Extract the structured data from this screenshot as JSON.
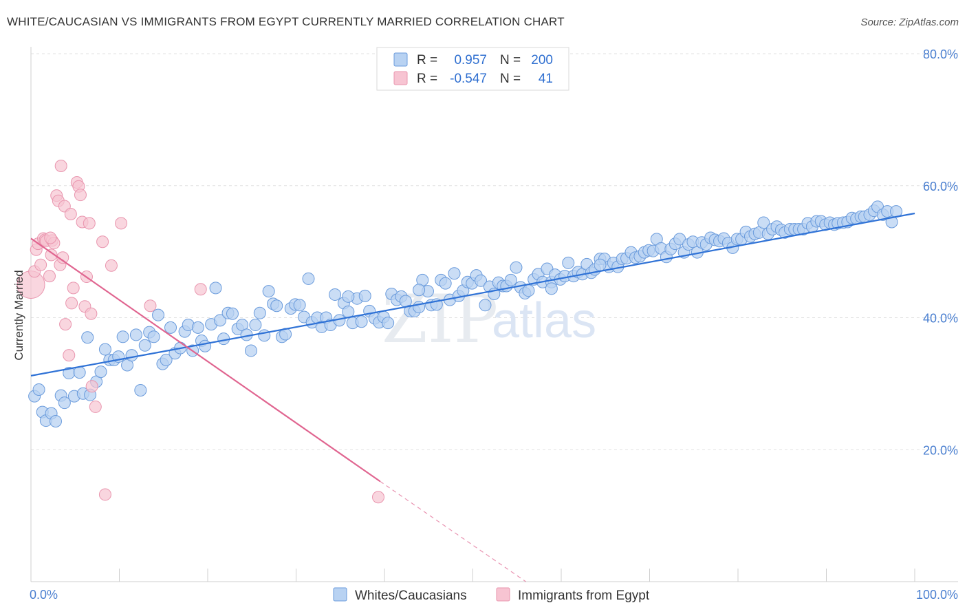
{
  "header": {
    "title": "WHITE/CAUCASIAN VS IMMIGRANTS FROM EGYPT CURRENTLY MARRIED CORRELATION CHART",
    "source": "Source: ZipAtlas.com"
  },
  "watermark": {
    "zip": "ZIP",
    "atlas": "atlas"
  },
  "legend_top": {
    "rows": [
      {
        "r_label": "R =",
        "r_value": "0.957",
        "n_label": "N =",
        "n_value": "200"
      },
      {
        "r_label": "R =",
        "r_value": "-0.547",
        "n_label": "N =",
        "n_value": "41"
      }
    ]
  },
  "legend_bottom": {
    "items": [
      {
        "label": "Whites/Caucasians"
      },
      {
        "label": "Immigrants from Egypt"
      }
    ]
  },
  "colors": {
    "blue_fill": "#b8d2f2",
    "blue_stroke": "#6a9bdc",
    "blue_line": "#2f72d6",
    "pink_fill": "#f7c4d2",
    "pink_stroke": "#e995ae",
    "pink_line": "#e06590",
    "grid": "#e2e2e2",
    "tick_text": "#4a7fd0"
  },
  "chart_data": {
    "type": "scatter",
    "title": "WHITE/CAUCASIAN VS IMMIGRANTS FROM EGYPT CURRENTLY MARRIED CORRELATION CHART",
    "xlabel": "",
    "ylabel": "Currently Married",
    "xlim": [
      0,
      100
    ],
    "ylim": [
      0,
      80
    ],
    "x_tick_labels": [
      "0.0%",
      "100.0%"
    ],
    "y_ticks": [
      20,
      40,
      60,
      80
    ],
    "y_tick_labels": [
      "20.0%",
      "40.0%",
      "60.0%",
      "80.0%"
    ],
    "grid": true,
    "legend_position": "top-center",
    "series": [
      {
        "name": "Whites/Caucasians",
        "r": 0.957,
        "n": 200,
        "trend": {
          "x": [
            0,
            100
          ],
          "y": [
            31.2,
            55.8
          ]
        },
        "points": [
          [
            0.4,
            28.1
          ],
          [
            0.9,
            29.1
          ],
          [
            1.3,
            25.7
          ],
          [
            1.7,
            24.4
          ],
          [
            2.3,
            25.5
          ],
          [
            2.8,
            24.3
          ],
          [
            3.4,
            28.2
          ],
          [
            3.8,
            27.1
          ],
          [
            4.3,
            31.6
          ],
          [
            4.9,
            28.1
          ],
          [
            5.5,
            31.7
          ],
          [
            5.9,
            28.5
          ],
          [
            6.4,
            37.0
          ],
          [
            6.7,
            28.3
          ],
          [
            7.4,
            30.3
          ],
          [
            7.9,
            31.8
          ],
          [
            8.4,
            35.2
          ],
          [
            8.9,
            33.6
          ],
          [
            9.4,
            33.6
          ],
          [
            9.9,
            34.1
          ],
          [
            10.4,
            37.1
          ],
          [
            10.9,
            32.8
          ],
          [
            11.4,
            34.3
          ],
          [
            11.9,
            37.4
          ],
          [
            12.4,
            29.0
          ],
          [
            12.9,
            35.8
          ],
          [
            13.4,
            37.8
          ],
          [
            13.9,
            37.1
          ],
          [
            14.4,
            40.4
          ],
          [
            14.9,
            33.0
          ],
          [
            15.3,
            33.6
          ],
          [
            15.8,
            38.5
          ],
          [
            16.3,
            34.6
          ],
          [
            16.9,
            35.4
          ],
          [
            17.4,
            37.9
          ],
          [
            17.8,
            38.9
          ],
          [
            18.3,
            35.0
          ],
          [
            18.9,
            38.5
          ],
          [
            19.3,
            36.5
          ],
          [
            19.7,
            35.7
          ],
          [
            20.4,
            39.0
          ],
          [
            20.9,
            44.5
          ],
          [
            21.4,
            39.6
          ],
          [
            21.8,
            36.8
          ],
          [
            22.3,
            40.7
          ],
          [
            22.8,
            40.6
          ],
          [
            23.4,
            38.3
          ],
          [
            23.9,
            38.9
          ],
          [
            24.4,
            37.4
          ],
          [
            24.9,
            35.0
          ],
          [
            25.4,
            38.9
          ],
          [
            25.9,
            40.7
          ],
          [
            26.4,
            37.3
          ],
          [
            26.9,
            44.0
          ],
          [
            27.4,
            42.1
          ],
          [
            27.8,
            41.8
          ],
          [
            28.4,
            37.1
          ],
          [
            28.8,
            37.5
          ],
          [
            29.4,
            41.4
          ],
          [
            29.9,
            42.0
          ],
          [
            30.4,
            41.9
          ],
          [
            30.9,
            40.1
          ],
          [
            31.4,
            45.9
          ],
          [
            31.8,
            39.3
          ],
          [
            32.4,
            40.0
          ],
          [
            32.9,
            38.6
          ],
          [
            33.4,
            40.0
          ],
          [
            33.9,
            38.9
          ],
          [
            34.4,
            43.5
          ],
          [
            34.9,
            39.6
          ],
          [
            35.4,
            42.2
          ],
          [
            35.9,
            40.9
          ],
          [
            36.4,
            39.2
          ],
          [
            36.9,
            42.9
          ],
          [
            37.4,
            39.4
          ],
          [
            37.8,
            43.3
          ],
          [
            38.3,
            41.0
          ],
          [
            38.9,
            39.9
          ],
          [
            39.4,
            39.3
          ],
          [
            39.9,
            40.1
          ],
          [
            40.4,
            39.2
          ],
          [
            40.8,
            43.6
          ],
          [
            41.4,
            42.7
          ],
          [
            41.9,
            43.2
          ],
          [
            42.4,
            42.5
          ],
          [
            42.9,
            41.0
          ],
          [
            43.4,
            41.0
          ],
          [
            43.9,
            41.6
          ],
          [
            44.3,
            45.7
          ],
          [
            44.9,
            44.0
          ],
          [
            45.3,
            41.9
          ],
          [
            45.9,
            42.0
          ],
          [
            46.4,
            45.7
          ],
          [
            46.9,
            45.2
          ],
          [
            47.4,
            42.7
          ],
          [
            47.9,
            46.7
          ],
          [
            48.4,
            43.3
          ],
          [
            48.9,
            44.1
          ],
          [
            49.4,
            45.4
          ],
          [
            49.9,
            45.2
          ],
          [
            50.4,
            46.4
          ],
          [
            50.9,
            45.6
          ],
          [
            51.4,
            41.9
          ],
          [
            51.9,
            44.7
          ],
          [
            52.4,
            43.6
          ],
          [
            52.9,
            45.3
          ],
          [
            53.4,
            44.8
          ],
          [
            53.8,
            44.8
          ],
          [
            54.3,
            45.7
          ],
          [
            54.9,
            47.6
          ],
          [
            55.4,
            44.6
          ],
          [
            55.9,
            43.7
          ],
          [
            56.3,
            44.1
          ],
          [
            56.9,
            45.8
          ],
          [
            57.4,
            46.6
          ],
          [
            57.9,
            45.4
          ],
          [
            58.4,
            47.4
          ],
          [
            58.9,
            45.4
          ],
          [
            59.3,
            46.5
          ],
          [
            59.9,
            45.8
          ],
          [
            60.4,
            46.3
          ],
          [
            60.8,
            48.3
          ],
          [
            61.4,
            46.3
          ],
          [
            61.9,
            46.9
          ],
          [
            62.4,
            46.6
          ],
          [
            62.9,
            48.1
          ],
          [
            63.4,
            46.8
          ],
          [
            63.8,
            47.3
          ],
          [
            64.4,
            48.9
          ],
          [
            64.9,
            48.9
          ],
          [
            65.4,
            47.7
          ],
          [
            65.9,
            48.3
          ],
          [
            66.4,
            47.7
          ],
          [
            66.9,
            48.9
          ],
          [
            67.4,
            49.0
          ],
          [
            67.9,
            49.9
          ],
          [
            68.4,
            49.1
          ],
          [
            68.9,
            49.3
          ],
          [
            69.4,
            49.9
          ],
          [
            69.9,
            50.2
          ],
          [
            70.4,
            50.1
          ],
          [
            70.8,
            51.9
          ],
          [
            71.3,
            50.5
          ],
          [
            71.9,
            49.2
          ],
          [
            72.4,
            50.4
          ],
          [
            72.9,
            51.2
          ],
          [
            73.4,
            51.9
          ],
          [
            73.9,
            49.9
          ],
          [
            74.4,
            51.1
          ],
          [
            74.9,
            51.5
          ],
          [
            75.4,
            49.9
          ],
          [
            75.9,
            51.4
          ],
          [
            76.4,
            51.1
          ],
          [
            76.9,
            52.1
          ],
          [
            77.4,
            51.8
          ],
          [
            77.9,
            51.6
          ],
          [
            78.4,
            52.0
          ],
          [
            78.9,
            51.3
          ],
          [
            79.4,
            50.6
          ],
          [
            79.9,
            51.9
          ],
          [
            80.4,
            51.9
          ],
          [
            80.9,
            53.0
          ],
          [
            81.4,
            52.3
          ],
          [
            81.9,
            52.7
          ],
          [
            82.4,
            52.9
          ],
          [
            82.9,
            54.4
          ],
          [
            83.4,
            52.7
          ],
          [
            83.9,
            53.4
          ],
          [
            84.4,
            53.8
          ],
          [
            84.9,
            53.3
          ],
          [
            85.3,
            52.9
          ],
          [
            85.9,
            53.4
          ],
          [
            86.4,
            53.4
          ],
          [
            86.9,
            53.4
          ],
          [
            87.4,
            53.4
          ],
          [
            87.9,
            54.3
          ],
          [
            88.4,
            53.8
          ],
          [
            88.9,
            54.6
          ],
          [
            89.4,
            54.6
          ],
          [
            89.9,
            54.1
          ],
          [
            90.4,
            54.4
          ],
          [
            90.9,
            54.1
          ],
          [
            91.3,
            54.3
          ],
          [
            91.9,
            54.4
          ],
          [
            92.4,
            54.5
          ],
          [
            92.9,
            55.1
          ],
          [
            93.4,
            55.0
          ],
          [
            93.9,
            55.3
          ],
          [
            94.3,
            55.3
          ],
          [
            94.9,
            55.6
          ],
          [
            95.4,
            56.2
          ],
          [
            95.8,
            56.8
          ],
          [
            96.4,
            55.6
          ],
          [
            96.9,
            56.1
          ],
          [
            97.4,
            54.5
          ],
          [
            97.9,
            56.1
          ],
          [
            35.9,
            43.2
          ],
          [
            43.9,
            44.2
          ],
          [
            58.9,
            44.4
          ],
          [
            64.4,
            48.0
          ]
        ]
      },
      {
        "name": "Immigrants from Egypt",
        "r": -0.547,
        "n": 41,
        "trend": {
          "x": [
            0,
            39.5
          ],
          "y": [
            52.0,
            15.2
          ],
          "dashed_extension": {
            "x": [
              39.5,
              56.0
            ],
            "y": [
              15.2,
              0
            ]
          }
        },
        "points": [
          [
            0.0,
            45.0
          ],
          [
            0.4,
            47.0
          ],
          [
            0.6,
            50.3
          ],
          [
            0.8,
            51.2
          ],
          [
            1.1,
            48.0
          ],
          [
            1.4,
            52.0
          ],
          [
            1.6,
            51.8
          ],
          [
            1.7,
            51.6
          ],
          [
            2.1,
            46.3
          ],
          [
            2.3,
            49.5
          ],
          [
            2.4,
            51.7
          ],
          [
            2.6,
            51.3
          ],
          [
            2.9,
            58.5
          ],
          [
            3.1,
            57.7
          ],
          [
            3.3,
            48.0
          ],
          [
            3.4,
            63.0
          ],
          [
            3.6,
            49.1
          ],
          [
            3.8,
            56.9
          ],
          [
            3.9,
            39.0
          ],
          [
            4.3,
            34.3
          ],
          [
            4.5,
            55.7
          ],
          [
            4.6,
            42.2
          ],
          [
            4.8,
            44.5
          ],
          [
            5.2,
            60.5
          ],
          [
            5.4,
            59.9
          ],
          [
            5.6,
            58.6
          ],
          [
            5.8,
            54.5
          ],
          [
            6.1,
            41.7
          ],
          [
            6.3,
            46.2
          ],
          [
            6.6,
            54.3
          ],
          [
            6.8,
            40.6
          ],
          [
            6.9,
            29.6
          ],
          [
            7.3,
            26.5
          ],
          [
            8.1,
            51.5
          ],
          [
            8.4,
            13.2
          ],
          [
            9.1,
            47.9
          ],
          [
            10.2,
            54.3
          ],
          [
            13.5,
            41.8
          ],
          [
            19.2,
            44.3
          ],
          [
            39.3,
            12.8
          ],
          [
            2.2,
            52.1
          ]
        ]
      }
    ]
  }
}
